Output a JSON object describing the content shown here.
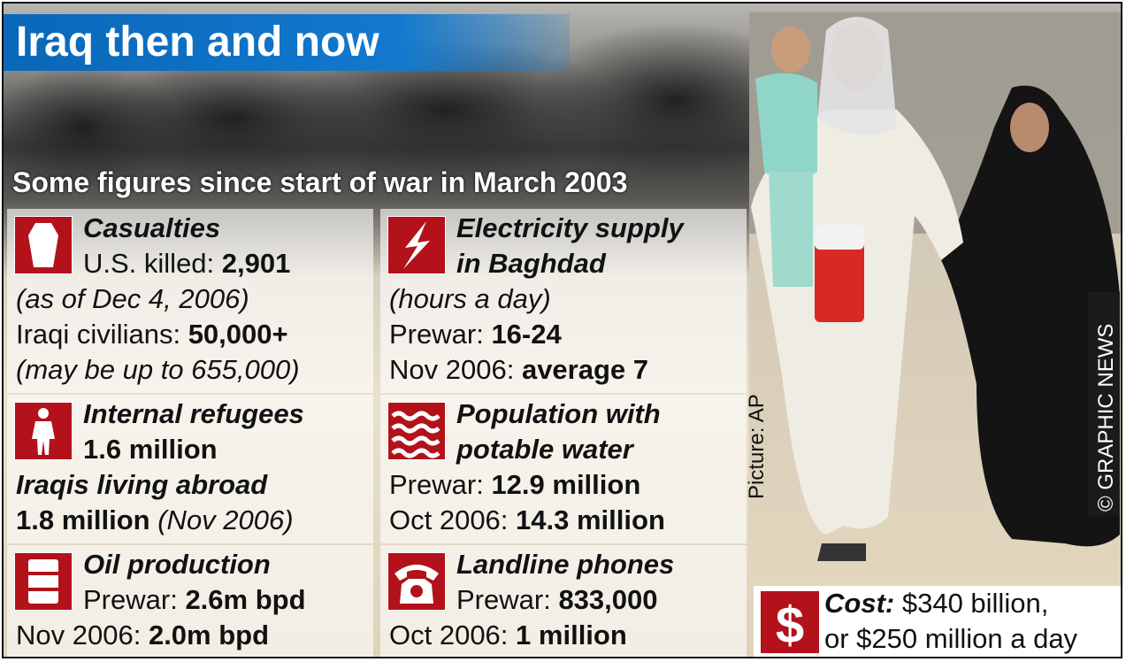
{
  "title": "Iraq then and now",
  "subtitle": "Some figures since start of war in March 2003",
  "panels": [
    {
      "lines": [
        {
          "heading": "Casualties"
        },
        {
          "label": "U.S. killed:",
          "value": "2,901"
        },
        {
          "note": "(as of Dec 4, 2006)"
        },
        {
          "label": "Iraqi civilians:",
          "value": "50,000+"
        },
        {
          "note": "(may be up to 655,000)"
        }
      ]
    },
    {
      "lines": [
        {
          "heading": "Electricity supply"
        },
        {
          "heading": "in Baghdad"
        },
        {
          "note": "(hours a day)"
        },
        {
          "label": "Prewar:",
          "value": "16-24"
        },
        {
          "label": "Nov 2006:",
          "value": "average 7"
        }
      ]
    },
    {
      "lines": [
        {
          "heading": "Internal refugees"
        },
        {
          "value": "1.6 million"
        },
        {
          "heading": "Iraqis living abroad"
        },
        {
          "value": "1.8 million",
          "note": "(Nov 2006)"
        }
      ]
    },
    {
      "lines": [
        {
          "heading": "Population with"
        },
        {
          "heading": "potable water"
        },
        {
          "label": "Prewar:",
          "value": "12.9 million"
        },
        {
          "label": "Oct 2006:",
          "value": "14.3 million"
        }
      ]
    },
    {
      "lines": [
        {
          "heading": "Oil production"
        },
        {
          "label": "Prewar:",
          "value": "2.6m bpd"
        },
        {
          "label": "Nov 2006:",
          "value": "2.0m bpd"
        }
      ]
    },
    {
      "lines": [
        {
          "heading": "Landline phones"
        },
        {
          "label": "Prewar:",
          "value": "833,000"
        },
        {
          "label": "Oct 2006:",
          "value": "1 million"
        }
      ]
    }
  ],
  "cost": {
    "lines": [
      {
        "heading": "Cost:",
        "label": "$340 billion,"
      },
      {
        "label": "or $250 million a day"
      }
    ]
  },
  "credits": {
    "picture": "Picture: AP",
    "agency": "© GRAPHIC NEWS"
  }
}
